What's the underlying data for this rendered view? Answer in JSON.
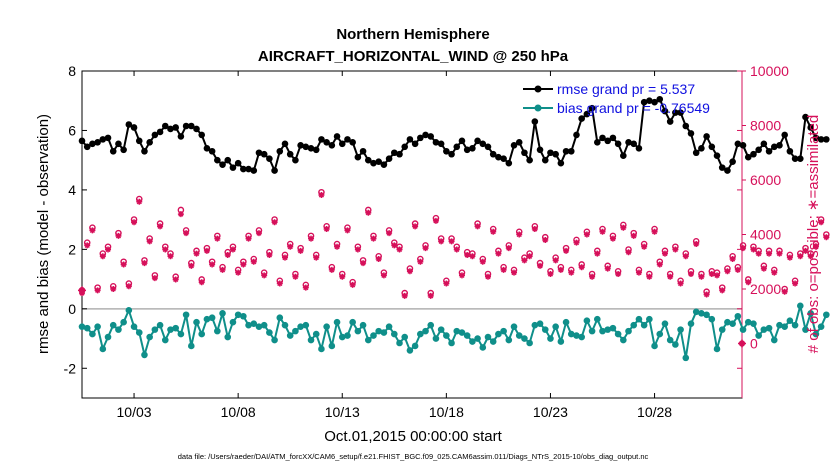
{
  "colors": {
    "rmse": "#000000",
    "bias": "#0f8f8a",
    "obs": "#d6105a",
    "zero_line": "#b0b0b0",
    "legend_text": "#1010e0"
  },
  "chart_data": {
    "type": "line",
    "title": "Northern Hemisphere",
    "subtitle": "AIRCRAFT_HORIZONTAL_WIND @ 250 hPa",
    "xlabel": "Oct.01,2015 00:00:00 start",
    "ylabel_left": "rmse and bias (model - observation)",
    "ylabel_right": "# of obs: o=possible; ∗=assimilated",
    "xlim": [
      0.5,
      32.2
    ],
    "ylim": [
      -3,
      8
    ],
    "ylim_right": [
      -2000,
      10000
    ],
    "x_ticks": [
      {
        "x": 3,
        "label": "10/03"
      },
      {
        "x": 8,
        "label": "10/08"
      },
      {
        "x": 13,
        "label": "10/13"
      },
      {
        "x": 18,
        "label": "10/18"
      },
      {
        "x": 23,
        "label": "10/23"
      },
      {
        "x": 28,
        "label": "10/28"
      }
    ],
    "y_ticks_left": [
      "-2",
      "0",
      "2",
      "4",
      "6",
      "8"
    ],
    "y_ticks_right": [
      "0",
      "2000",
      "4000",
      "6000",
      "8000",
      "10000"
    ],
    "legend": [
      {
        "label": "rmse grand pr = 5.537"
      },
      {
        "label": "bias grand pr = -0.76549"
      }
    ],
    "footnote": "data file: /Users/raeder/DAI/ATM_forcXX/CAM6_setup/f.e21.FHIST_BGC.f09_025.CAM6assim.011/Diags_NTrS_2015-10/obs_diag_output.nc",
    "x_start": 0.5,
    "x_step": 0.25,
    "series": [
      {
        "name": "rmse",
        "values": [
          5.65,
          5.45,
          5.55,
          5.6,
          5.7,
          5.75,
          5.3,
          5.55,
          5.35,
          6.2,
          6.1,
          5.65,
          5.3,
          5.6,
          5.85,
          5.95,
          6.15,
          6.05,
          6.1,
          5.8,
          6.15,
          6.15,
          6.05,
          5.85,
          5.4,
          5.3,
          5.0,
          4.85,
          5.0,
          4.75,
          4.9,
          4.7,
          4.7,
          4.65,
          5.25,
          5.2,
          5.05,
          4.65,
          5.3,
          5.55,
          5.2,
          5.0,
          5.5,
          5.45,
          5.4,
          5.35,
          5.7,
          5.6,
          5.5,
          5.8,
          5.55,
          5.7,
          5.6,
          5.1,
          5.3,
          5.0,
          4.9,
          4.95,
          4.85,
          5.05,
          5.25,
          5.2,
          5.45,
          5.7,
          5.55,
          5.75,
          5.85,
          5.8,
          5.6,
          5.55,
          5.3,
          5.2,
          5.45,
          5.65,
          5.35,
          5.4,
          5.65,
          5.55,
          5.45,
          5.2,
          5.1,
          5.05,
          4.9,
          5.5,
          5.6,
          5.25,
          5.0,
          6.3,
          5.35,
          5.0,
          5.25,
          5.2,
          4.9,
          5.3,
          5.3,
          5.85,
          6.4,
          6.55,
          6.75,
          5.6,
          5.75,
          5.65,
          5.75,
          5.55,
          5.15,
          5.6,
          5.55,
          5.4,
          6.95,
          7.0,
          6.95,
          7.05,
          6.65,
          6.3,
          6.6,
          6.6,
          6.15,
          5.9,
          5.25,
          5.4,
          5.8,
          5.45,
          5.15,
          4.75,
          4.65,
          4.95,
          5.55,
          5.5,
          5.1,
          5.2,
          5.35,
          5.55,
          5.3,
          5.45,
          5.5,
          5.85,
          5.3,
          5.05,
          5.05,
          6.45,
          6.1,
          5.75,
          5.7,
          5.7
        ]
      },
      {
        "name": "bias",
        "values": [
          -0.6,
          -0.65,
          -0.85,
          -0.6,
          -1.35,
          -0.95,
          -0.55,
          -0.7,
          -0.45,
          -0.05,
          -0.6,
          -0.8,
          -1.55,
          -0.95,
          -0.7,
          -0.55,
          -1.05,
          -0.7,
          -0.65,
          -0.85,
          -0.2,
          -1.25,
          -0.45,
          -0.85,
          -0.35,
          -0.3,
          -0.75,
          -0.15,
          -0.95,
          -0.45,
          -0.2,
          -0.25,
          -0.55,
          -0.5,
          -0.6,
          -0.55,
          -0.8,
          -1.05,
          -0.3,
          -0.55,
          -0.9,
          -0.75,
          -0.6,
          -0.55,
          -1.05,
          -0.85,
          -1.35,
          -0.6,
          -1.25,
          -0.45,
          -0.95,
          -0.9,
          -0.45,
          -0.75,
          -0.55,
          -1.05,
          -0.9,
          -0.75,
          -0.8,
          -0.6,
          -0.85,
          -1.15,
          -0.95,
          -1.4,
          -1.25,
          -0.85,
          -0.75,
          -0.55,
          -1.0,
          -0.7,
          -0.9,
          -1.15,
          -0.75,
          -0.8,
          -0.9,
          -1.1,
          -1.0,
          -1.3,
          -0.95,
          -1.1,
          -0.85,
          -0.75,
          -1.05,
          -0.6,
          -0.9,
          -1.0,
          -1.15,
          -0.55,
          -0.5,
          -0.7,
          -1.0,
          -0.6,
          -1.1,
          -0.45,
          -0.85,
          -0.9,
          -0.95,
          -0.4,
          -0.75,
          -0.35,
          -0.75,
          -0.7,
          -0.65,
          -0.85,
          -1.05,
          -0.75,
          -0.55,
          -0.35,
          -0.55,
          -0.35,
          -1.25,
          -0.85,
          -0.5,
          -1.05,
          -1.2,
          -0.7,
          -1.65,
          -0.5,
          -0.1,
          -0.15,
          -0.2,
          -0.35,
          -1.35,
          -0.7,
          -0.45,
          -0.5,
          -0.25,
          -0.7,
          -0.45,
          -0.5,
          -0.9,
          -0.7,
          -0.65,
          -1.05,
          -0.55,
          -0.6,
          -0.4,
          -0.55,
          0.1,
          -0.7,
          -0.15,
          -0.85,
          -0.6,
          -0.2
        ]
      },
      {
        "name": "obs_possible",
        "values": [
          1950,
          3700,
          4250,
          2050,
          3300,
          3550,
          2100,
          4050,
          3000,
          2200,
          4550,
          5300,
          3050,
          3850,
          2500,
          4400,
          3550,
          3300,
          2450,
          4900,
          4150,
          2950,
          3400,
          2350,
          3500,
          3000,
          3950,
          2800,
          3350,
          3550,
          2700,
          3000,
          3950,
          3100,
          4150,
          2600,
          3350,
          4550,
          2300,
          3250,
          3650,
          2550,
          3500,
          2150,
          3950,
          3250,
          5550,
          4300,
          2800,
          3650,
          2550,
          4250,
          2250,
          3550,
          3050,
          4900,
          3950,
          3200,
          2600,
          4150,
          3700,
          3550,
          1850,
          2750,
          4400,
          3100,
          3600,
          1850,
          4600,
          3850,
          2300,
          3850,
          3550,
          2600,
          3350,
          3300,
          4400,
          3100,
          2550,
          4200,
          3400,
          2800,
          3600,
          2700,
          4100,
          3150,
          3300,
          4300,
          2950,
          3900,
          2650,
          3150,
          2800,
          3500,
          2700,
          3800,
          2900,
          4100,
          2550,
          3400,
          4200,
          2850,
          3950,
          2650,
          4350,
          3450,
          4050,
          2700,
          3650,
          2550,
          4200,
          3000,
          3400,
          2550,
          3550,
          2300,
          3300,
          2650,
          3750,
          2550,
          1900,
          2650,
          2600,
          2050,
          2750,
          3200,
          2800,
          3600,
          2350,
          3550,
          3400,
          2850,
          3400,
          2700,
          3400,
          2000,
          3250,
          2300,
          3300,
          3500,
          3300,
          3650,
          4550,
          4000
        ]
      },
      {
        "name": "obs_assimilated",
        "values": [
          1850,
          3600,
          4150,
          1950,
          3200,
          3450,
          2000,
          3950,
          2900,
          2100,
          4450,
          5200,
          2950,
          3750,
          2400,
          4300,
          3450,
          3200,
          2350,
          4750,
          4050,
          2850,
          3300,
          2250,
          3400,
          2900,
          3850,
          2700,
          3250,
          3450,
          2600,
          2900,
          3850,
          3000,
          4050,
          2500,
          3250,
          4450,
          2200,
          3150,
          3550,
          2450,
          3400,
          2050,
          3850,
          3150,
          5450,
          4200,
          2700,
          3550,
          2450,
          4150,
          2150,
          3450,
          2950,
          4800,
          3850,
          3100,
          2500,
          4050,
          3600,
          3450,
          1750,
          2650,
          4300,
          3000,
          3500,
          1750,
          4500,
          3750,
          2200,
          3750,
          3450,
          2500,
          3250,
          3200,
          4300,
          3000,
          2450,
          4100,
          3300,
          2700,
          3500,
          2600,
          4000,
          3050,
          3200,
          4200,
          2850,
          3800,
          2550,
          3050,
          2700,
          3400,
          2600,
          3700,
          2800,
          4000,
          2450,
          3300,
          4100,
          2750,
          3850,
          2550,
          4250,
          3350,
          3950,
          2600,
          3550,
          2450,
          4100,
          2900,
          3300,
          2450,
          3450,
          2200,
          3200,
          2550,
          3650,
          2450,
          1800,
          2550,
          2500,
          1950,
          2650,
          3100,
          2700,
          3500,
          2250,
          3450,
          3300,
          2750,
          3300,
          2600,
          3300,
          1900,
          3150,
          2200,
          3200,
          3400,
          3200,
          3550,
          4450,
          3900
        ]
      }
    ],
    "extra_points": [
      {
        "series": "obs_possible",
        "x": 0.5,
        "y": 1950
      },
      {
        "series": "obs_possible",
        "x": 32.2,
        "y": 0
      }
    ]
  }
}
